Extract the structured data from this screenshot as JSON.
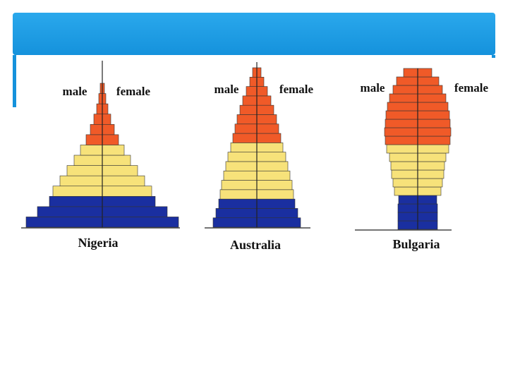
{
  "chart_data": [
    {
      "type": "pyramid",
      "title": "Nigeria",
      "series": [
        {
          "name": "male",
          "values": [
            108,
            92,
            75,
            70,
            60,
            50,
            40,
            31,
            23,
            17,
            12,
            8,
            5,
            3
          ]
        },
        {
          "name": "female",
          "values": [
            108,
            92,
            75,
            70,
            60,
            50,
            40,
            31,
            23,
            17,
            12,
            8,
            5,
            3
          ]
        }
      ],
      "colors": [
        "#1a2fa0",
        "#1a2fa0",
        "#1a2fa0",
        "#f7e27a",
        "#f7e27a",
        "#f7e27a",
        "#f7e27a",
        "#f7e27a",
        "#f05a28",
        "#f05a28",
        "#f05a28",
        "#f05a28",
        "#f05a28",
        "#f05a28"
      ]
    },
    {
      "type": "pyramid",
      "title": "Australia",
      "series": [
        {
          "name": "male",
          "values": [
            62,
            58,
            54,
            52,
            50,
            47,
            44,
            41,
            37,
            34,
            31,
            28,
            24,
            20,
            15,
            10,
            6
          ]
        },
        {
          "name": "female",
          "values": [
            62,
            58,
            54,
            52,
            50,
            47,
            44,
            41,
            37,
            34,
            31,
            28,
            24,
            20,
            15,
            10,
            6
          ]
        }
      ],
      "colors": [
        "#1a2fa0",
        "#1a2fa0",
        "#1a2fa0",
        "#f7e27a",
        "#f7e27a",
        "#f7e27a",
        "#f7e27a",
        "#f7e27a",
        "#f7e27a",
        "#f05a28",
        "#f05a28",
        "#f05a28",
        "#f05a28",
        "#f05a28",
        "#f05a28",
        "#f05a28",
        "#f05a28"
      ]
    },
    {
      "type": "pyramid",
      "title": "Bulgaria",
      "series": [
        {
          "name": "male",
          "values": [
            28,
            28,
            28,
            27,
            33,
            35,
            37,
            38,
            40,
            44,
            46,
            47,
            46,
            45,
            43,
            40,
            35,
            30,
            20
          ]
        },
        {
          "name": "female",
          "values": [
            28,
            28,
            28,
            27,
            33,
            35,
            37,
            38,
            40,
            44,
            46,
            47,
            46,
            45,
            43,
            40,
            35,
            30,
            20
          ]
        }
      ],
      "colors": [
        "#1a2fa0",
        "#1a2fa0",
        "#1a2fa0",
        "#1a2fa0",
        "#f7e27a",
        "#f7e27a",
        "#f7e27a",
        "#f7e27a",
        "#f7e27a",
        "#f7e27a",
        "#f05a28",
        "#f05a28",
        "#f05a28",
        "#f05a28",
        "#f05a28",
        "#f05a28",
        "#f05a28",
        "#f05a28",
        "#f05a28"
      ]
    }
  ]
}
